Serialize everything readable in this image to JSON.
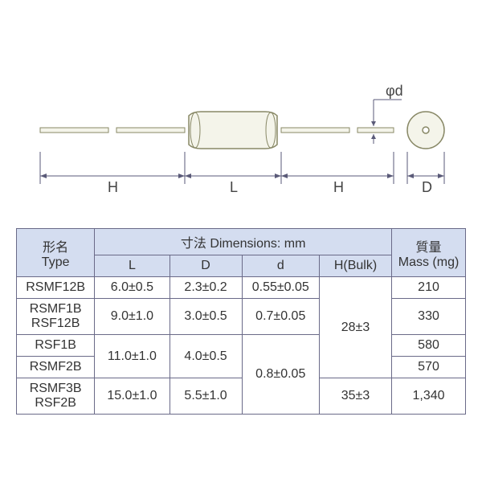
{
  "diagram": {
    "labels": {
      "phi_d": "φd",
      "H": "H",
      "L": "L",
      "D": "D"
    },
    "colors": {
      "line": "#555577",
      "body_fill": "#f4f4ea",
      "body_stroke": "#888866",
      "dim_line": "#5a5a78"
    }
  },
  "table": {
    "headers": {
      "type": "形名\nType",
      "dimensions": "寸法 Dimensions: mm",
      "L": "L",
      "D": "D",
      "d": "d",
      "HBulk": "H(Bulk)",
      "mass": "質量\nMass (mg)"
    },
    "rows": [
      {
        "type": "RSMF12B",
        "L": "6.0±0.5",
        "D": "2.3±0.2",
        "d": "0.55±0.05",
        "H": "28±3",
        "mass": "210"
      },
      {
        "type": "RSMF1B\nRSF12B",
        "L": "9.0±1.0",
        "D": "3.0±0.5",
        "d": "0.7±0.05",
        "H": "28±3",
        "mass": "330"
      },
      {
        "type": "RSF1B",
        "L": "11.0±1.0",
        "D": "4.0±0.5",
        "d": "0.8±0.05",
        "H": "28±3",
        "mass": "580"
      },
      {
        "type": "RSMF2B",
        "L": "11.0±1.0",
        "D": "4.0±0.5",
        "d": "0.8±0.05",
        "H": "28±3",
        "mass": "570"
      },
      {
        "type": "RSMF3B\nRSF2B",
        "L": "15.0±1.0",
        "D": "5.5±1.0",
        "d": "0.8±0.05",
        "H": "35±3",
        "mass": "1,340"
      }
    ],
    "header_bg": "#d4ddf0",
    "border_color": "#6a6a88"
  }
}
